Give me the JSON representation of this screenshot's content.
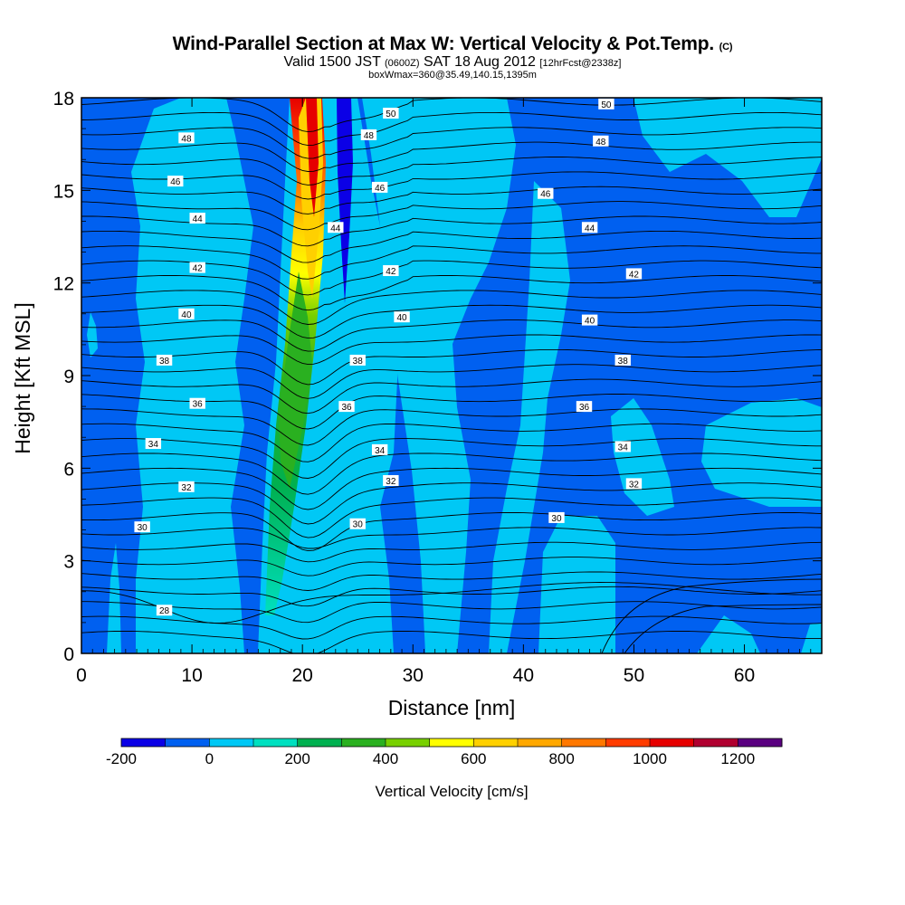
{
  "title": {
    "main": "Wind-Parallel Section at Max W: Vertical Velocity & Pot.Temp.",
    "copyright": "(C)",
    "valid_prefix": "Valid 1500 JST",
    "valid_utc": "(0600Z)",
    "valid_date": "SAT 18 Aug 2012",
    "forecast": "[12hrFcst@2338z]",
    "box": "boxWmax=360@35.49,140.15,1395m"
  },
  "chart_data": {
    "type": "heatmap",
    "xlabel": "Distance [nm]",
    "ylabel": "Height [Kft MSL]",
    "xlim": [
      0,
      67
    ],
    "ylim": [
      0,
      18
    ],
    "xticks": [
      0,
      10,
      20,
      30,
      40,
      50,
      60
    ],
    "yticks": [
      0,
      3,
      6,
      9,
      12,
      15,
      18
    ],
    "colorbar": {
      "label": "Vertical Velocity [cm/s]",
      "levels": [
        -200,
        -100,
        0,
        100,
        200,
        300,
        400,
        500,
        600,
        700,
        800,
        900,
        1000,
        1100,
        1200,
        1300
      ],
      "colors": [
        "#0b00e6",
        "#0060f0",
        "#00c8f5",
        "#00e0c0",
        "#00b050",
        "#2ab020",
        "#78d000",
        "#ffff00",
        "#ffd000",
        "#ffa800",
        "#ff7800",
        "#ff3c00",
        "#e60000",
        "#b00030",
        "#5a0080"
      ],
      "tick_labels": [
        "-200",
        "0",
        "200",
        "400",
        "600",
        "800",
        "1000",
        "1200"
      ],
      "tick_values": [
        -200,
        0,
        200,
        400,
        600,
        800,
        1000,
        1200
      ]
    },
    "background_value": -50,
    "updraft": {
      "axis_x": [
        [
          0.3,
          19.0
        ],
        [
          4,
          19.2
        ],
        [
          8,
          19.6
        ],
        [
          12,
          20.2
        ],
        [
          16,
          20.6
        ],
        [
          18,
          20.7
        ]
      ],
      "core_values": [
        [
          0.3,
          80
        ],
        [
          3,
          150
        ],
        [
          5,
          250
        ],
        [
          7,
          350
        ],
        [
          9,
          450
        ],
        [
          11,
          550
        ],
        [
          12.5,
          650
        ],
        [
          14,
          800
        ],
        [
          16,
          950
        ],
        [
          17.5,
          1050
        ]
      ]
    },
    "downdraft": {
      "x": 23.7,
      "height_range": [
        11.5,
        18
      ],
      "min_value": -200
    },
    "isentropes": {
      "variable": "Potential Temperature",
      "labels": [
        {
          "text": "50",
          "x": 28,
          "y": 17.5
        },
        {
          "text": "50",
          "x": 47.5,
          "y": 17.8
        },
        {
          "text": "48",
          "x": 9.5,
          "y": 16.7
        },
        {
          "text": "48",
          "x": 26,
          "y": 16.8
        },
        {
          "text": "48",
          "x": 47,
          "y": 16.6
        },
        {
          "text": "46",
          "x": 8.5,
          "y": 15.3
        },
        {
          "text": "46",
          "x": 27,
          "y": 15.1
        },
        {
          "text": "46",
          "x": 42,
          "y": 14.9
        },
        {
          "text": "44",
          "x": 10.5,
          "y": 14.1
        },
        {
          "text": "44",
          "x": 23,
          "y": 13.8
        },
        {
          "text": "44",
          "x": 46,
          "y": 13.8
        },
        {
          "text": "42",
          "x": 10.5,
          "y": 12.5
        },
        {
          "text": "42",
          "x": 28,
          "y": 12.4
        },
        {
          "text": "42",
          "x": 50,
          "y": 12.3
        },
        {
          "text": "40",
          "x": 9.5,
          "y": 11.0
        },
        {
          "text": "40",
          "x": 29,
          "y": 10.9
        },
        {
          "text": "40",
          "x": 46,
          "y": 10.8
        },
        {
          "text": "38",
          "x": 7.5,
          "y": 9.5
        },
        {
          "text": "38",
          "x": 25,
          "y": 9.5
        },
        {
          "text": "38",
          "x": 49,
          "y": 9.5
        },
        {
          "text": "36",
          "x": 10.5,
          "y": 8.1
        },
        {
          "text": "36",
          "x": 24,
          "y": 8.0
        },
        {
          "text": "36",
          "x": 45.5,
          "y": 8.0
        },
        {
          "text": "34",
          "x": 6.5,
          "y": 6.8
        },
        {
          "text": "34",
          "x": 27,
          "y": 6.6
        },
        {
          "text": "34",
          "x": 49,
          "y": 6.7
        },
        {
          "text": "32",
          "x": 9.5,
          "y": 5.4
        },
        {
          "text": "32",
          "x": 28,
          "y": 5.6
        },
        {
          "text": "32",
          "x": 50,
          "y": 5.5
        },
        {
          "text": "30",
          "x": 5.5,
          "y": 4.1
        },
        {
          "text": "30",
          "x": 25,
          "y": 4.2
        },
        {
          "text": "30",
          "x": 43,
          "y": 4.4
        },
        {
          "text": "28",
          "x": 7.5,
          "y": 1.4
        }
      ]
    }
  }
}
